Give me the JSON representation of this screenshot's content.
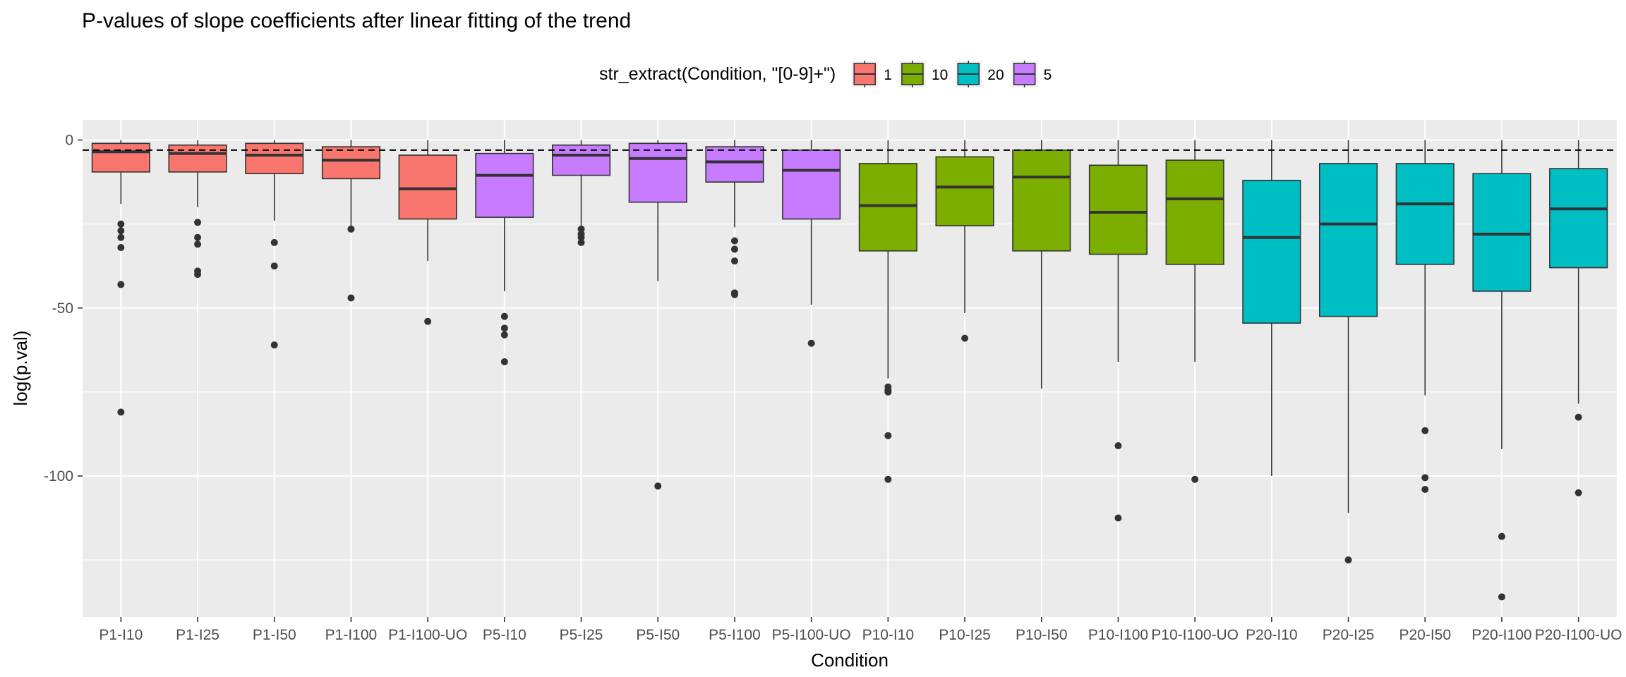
{
  "chart_data": {
    "type": "box",
    "title": "P-values of slope coefficients after linear fitting of the trend",
    "xlabel": "Condition",
    "ylabel": "log(p.val)",
    "ylim": [
      -142,
      6
    ],
    "yticks": [
      0,
      -50,
      -100
    ],
    "ytick_labels": [
      "0",
      "-50",
      "-100"
    ],
    "reference_line": {
      "y": -3,
      "style": "dashed"
    },
    "grid": true,
    "legend": {
      "title": "str_extract(Condition, \"[0-9]+\")",
      "position": "top",
      "entries": [
        {
          "label": "1",
          "color": "#F8766D"
        },
        {
          "label": "10",
          "color": "#7CAE00"
        },
        {
          "label": "20",
          "color": "#00BFC4"
        },
        {
          "label": "5",
          "color": "#C77CFF"
        }
      ]
    },
    "categories": [
      "P1-I10",
      "P1-I25",
      "P1-I50",
      "P1-I100",
      "P1-I100-UO",
      "P5-I10",
      "P5-I25",
      "P5-I50",
      "P5-I100",
      "P5-I100-UO",
      "P10-I10",
      "P10-I25",
      "P10-I50",
      "P10-I100",
      "P10-I100-UO",
      "P20-I10",
      "P20-I25",
      "P20-I50",
      "P20-I100",
      "P20-I100-UO"
    ],
    "boxes": [
      {
        "category": "P1-I10",
        "group": "1",
        "whisker_low": -19,
        "q1": -9.5,
        "median": -3.5,
        "q3": -1,
        "whisker_high": 0,
        "outliers": [
          -25,
          -27,
          -29,
          -32,
          -43,
          -81
        ]
      },
      {
        "category": "P1-I25",
        "group": "1",
        "whisker_low": -20,
        "q1": -9.5,
        "median": -4,
        "q3": -1.5,
        "whisker_high": 0,
        "outliers": [
          -24.5,
          -29,
          -31,
          -39,
          -40
        ]
      },
      {
        "category": "P1-I50",
        "group": "1",
        "whisker_low": -24,
        "q1": -10,
        "median": -4.5,
        "q3": -1,
        "whisker_high": 0,
        "outliers": [
          -30.5,
          -37.5,
          -61
        ]
      },
      {
        "category": "P1-I100",
        "group": "1",
        "whisker_low": -26,
        "q1": -11.5,
        "median": -6,
        "q3": -2,
        "whisker_high": 0,
        "outliers": [
          -26.5,
          -47
        ]
      },
      {
        "category": "P1-I100-UO",
        "group": "1",
        "whisker_low": -36,
        "q1": -23.5,
        "median": -14.5,
        "q3": -4.5,
        "whisker_high": 0,
        "outliers": [
          -54
        ]
      },
      {
        "category": "P5-I10",
        "group": "5",
        "whisker_low": -45,
        "q1": -23,
        "median": -10.5,
        "q3": -4,
        "whisker_high": 0,
        "outliers": [
          -52.5,
          -56,
          -58,
          -66
        ]
      },
      {
        "category": "P5-I25",
        "group": "5",
        "whisker_low": -26,
        "q1": -10.5,
        "median": -4.5,
        "q3": -1.5,
        "whisker_high": 0,
        "outliers": [
          -26.5,
          -28,
          -29,
          -30.5
        ]
      },
      {
        "category": "P5-I50",
        "group": "5",
        "whisker_low": -42,
        "q1": -18.5,
        "median": -5.5,
        "q3": -1,
        "whisker_high": 0,
        "outliers": [
          -103
        ]
      },
      {
        "category": "P5-I100",
        "group": "5",
        "whisker_low": -26,
        "q1": -12.5,
        "median": -6.5,
        "q3": -2,
        "whisker_high": 0,
        "outliers": [
          -30,
          -32.5,
          -36,
          -45.5,
          -46
        ]
      },
      {
        "category": "P5-I100-UO",
        "group": "5",
        "whisker_low": -49,
        "q1": -23.5,
        "median": -9,
        "q3": -3,
        "whisker_high": 0,
        "outliers": [
          -60.5
        ]
      },
      {
        "category": "P10-I10",
        "group": "10",
        "whisker_low": -71,
        "q1": -33,
        "median": -19.5,
        "q3": -7,
        "whisker_high": 0,
        "outliers": [
          -73.5,
          -74.5,
          -75,
          -88,
          -101
        ]
      },
      {
        "category": "P10-I25",
        "group": "10",
        "whisker_low": -51.5,
        "q1": -25.5,
        "median": -14,
        "q3": -5,
        "whisker_high": 0,
        "outliers": [
          -59
        ]
      },
      {
        "category": "P10-I50",
        "group": "10",
        "whisker_low": -74,
        "q1": -33,
        "median": -11,
        "q3": -3,
        "whisker_high": 0,
        "outliers": []
      },
      {
        "category": "P10-I100",
        "group": "10",
        "whisker_low": -66,
        "q1": -34,
        "median": -21.5,
        "q3": -7.5,
        "whisker_high": 0,
        "outliers": [
          -91,
          -112.5
        ]
      },
      {
        "category": "P10-I100-UO",
        "group": "10",
        "whisker_low": -66,
        "q1": -37,
        "median": -17.5,
        "q3": -6,
        "whisker_high": 0,
        "outliers": [
          -101
        ]
      },
      {
        "category": "P20-I10",
        "group": "20",
        "whisker_low": -100,
        "q1": -54.5,
        "median": -29,
        "q3": -12,
        "whisker_high": 0,
        "outliers": []
      },
      {
        "category": "P20-I25",
        "group": "20",
        "whisker_low": -111,
        "q1": -52.5,
        "median": -25,
        "q3": -7,
        "whisker_high": 0,
        "outliers": [
          -125
        ]
      },
      {
        "category": "P20-I50",
        "group": "20",
        "whisker_low": -76,
        "q1": -37,
        "median": -19,
        "q3": -7,
        "whisker_high": 0,
        "outliers": [
          -86.5,
          -100.5,
          -104
        ]
      },
      {
        "category": "P20-I100",
        "group": "20",
        "whisker_low": -92,
        "q1": -45,
        "median": -28,
        "q3": -10,
        "whisker_high": 0,
        "outliers": [
          -118,
          -136
        ]
      },
      {
        "category": "P20-I100-UO",
        "group": "20",
        "whisker_low": -78.5,
        "q1": -38,
        "median": -20.5,
        "q3": -8.5,
        "whisker_high": 0,
        "outliers": [
          -82.5,
          -105
        ]
      }
    ]
  }
}
